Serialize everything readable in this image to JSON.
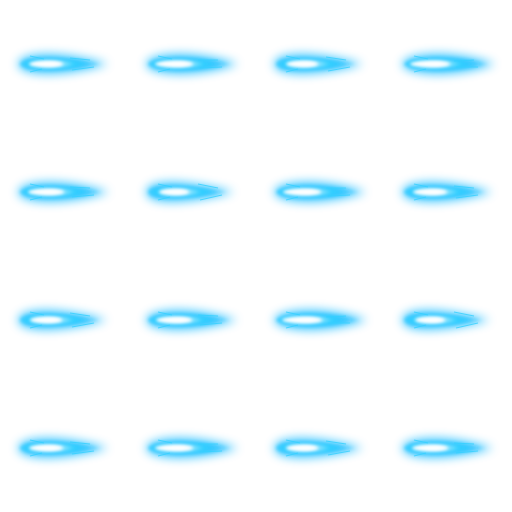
{
  "sprite_sheet": {
    "rows": 4,
    "columns": 4,
    "frame_count": 16,
    "background_color": "#ffffff",
    "effect_icon": "blue-energy-blast-icon",
    "colors": {
      "glow": "#00b4ff",
      "mid": "#33d0ff",
      "core": "#ffffff"
    }
  }
}
